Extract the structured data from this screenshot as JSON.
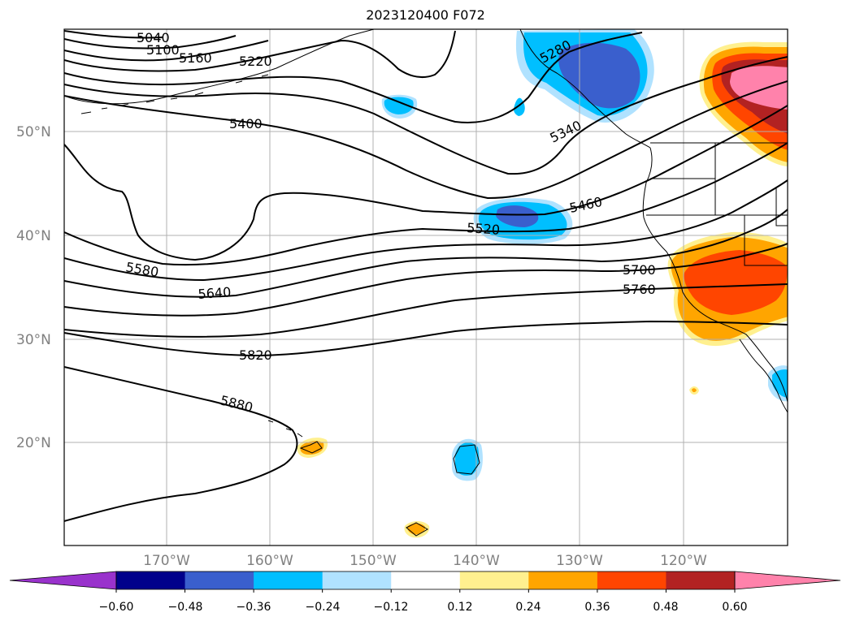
{
  "title": "2023120400 F072",
  "map": {
    "lat_labels": [
      "50°N",
      "40°N",
      "30°N",
      "20°N"
    ],
    "lon_labels": [
      "170°W",
      "160°W",
      "150°W",
      "140°W",
      "130°W",
      "120°W"
    ],
    "contour_labels": [
      "5040",
      "5100",
      "5160",
      "5220",
      "5280",
      "5340",
      "5400",
      "5460",
      "5520",
      "5580",
      "5640",
      "5700",
      "5760",
      "5820",
      "5880"
    ]
  },
  "colorbar": {
    "tick_labels": [
      "−0.60",
      "−0.48",
      "−0.36",
      "−0.24",
      "−0.12",
      "0.12",
      "0.24",
      "0.36",
      "0.48",
      "0.60"
    ],
    "colors": [
      "#9932cc",
      "#00008b",
      "#3a5fcd",
      "#00bfff",
      "#b0e2ff",
      "#ffffff",
      "#fff08f",
      "#ffa500",
      "#ff4500",
      "#b22222",
      "#ff82ab"
    ]
  }
}
